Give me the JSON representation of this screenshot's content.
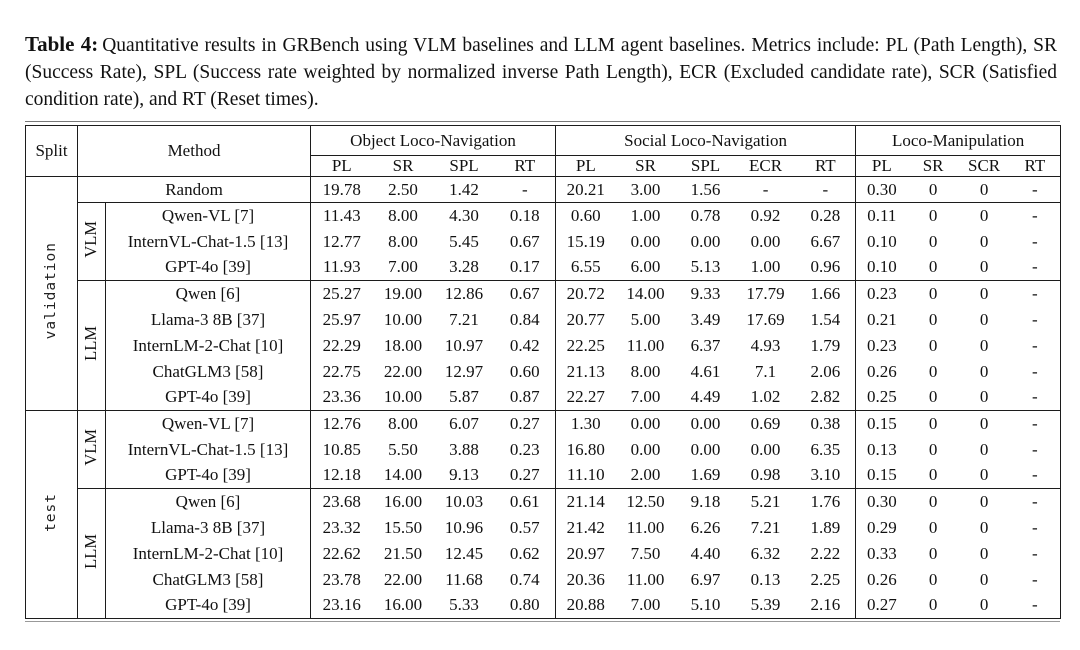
{
  "caption": {
    "label": "Table 4:",
    "text": "Quantitative results in GRBench using VLM baselines and LLM agent baselines. Metrics include: PL (Path Length), SR (Success Rate), SPL (Success rate weighted by normalized inverse Path Length), ECR (Excluded candidate rate), SCR (Satisfied condition rate), and RT (Reset times)."
  },
  "table": {
    "header": {
      "split": "Split",
      "method": "Method",
      "groups": [
        {
          "label": "Object Loco-Navigation",
          "cols": [
            "PL",
            "SR",
            "SPL",
            "RT"
          ]
        },
        {
          "label": "Social Loco-Navigation",
          "cols": [
            "PL",
            "SR",
            "SPL",
            "ECR",
            "RT"
          ]
        },
        {
          "label": "Loco-Manipulation",
          "cols": [
            "PL",
            "SR",
            "SCR",
            "RT"
          ]
        }
      ]
    },
    "sections": [
      {
        "split": "validation",
        "groups": [
          {
            "category": null,
            "rows": [
              {
                "method": "Random",
                "values": [
                  "19.78",
                  "2.50",
                  "1.42",
                  "-",
                  "20.21",
                  "3.00",
                  "1.56",
                  "-",
                  "-",
                  "0.30",
                  "0",
                  "0",
                  "-"
                ]
              }
            ]
          },
          {
            "category": "VLM",
            "rows": [
              {
                "method": "Qwen-VL [7]",
                "values": [
                  "11.43",
                  "8.00",
                  "4.30",
                  "0.18",
                  "0.60",
                  "1.00",
                  "0.78",
                  "0.92",
                  "0.28",
                  "0.11",
                  "0",
                  "0",
                  "-"
                ]
              },
              {
                "method": "InternVL-Chat-1.5 [13]",
                "values": [
                  "12.77",
                  "8.00",
                  "5.45",
                  "0.67",
                  "15.19",
                  "0.00",
                  "0.00",
                  "0.00",
                  "6.67",
                  "0.10",
                  "0",
                  "0",
                  "-"
                ]
              },
              {
                "method": "GPT-4o [39]",
                "values": [
                  "11.93",
                  "7.00",
                  "3.28",
                  "0.17",
                  "6.55",
                  "6.00",
                  "5.13",
                  "1.00",
                  "0.96",
                  "0.10",
                  "0",
                  "0",
                  "-"
                ]
              }
            ]
          },
          {
            "category": "LLM",
            "rows": [
              {
                "method": "Qwen [6]",
                "values": [
                  "25.27",
                  "19.00",
                  "12.86",
                  "0.67",
                  "20.72",
                  "14.00",
                  "9.33",
                  "17.79",
                  "1.66",
                  "0.23",
                  "0",
                  "0",
                  "-"
                ]
              },
              {
                "method": "Llama-3 8B [37]",
                "values": [
                  "25.97",
                  "10.00",
                  "7.21",
                  "0.84",
                  "20.77",
                  "5.00",
                  "3.49",
                  "17.69",
                  "1.54",
                  "0.21",
                  "0",
                  "0",
                  "-"
                ]
              },
              {
                "method": "InternLM-2-Chat [10]",
                "values": [
                  "22.29",
                  "18.00",
                  "10.97",
                  "0.42",
                  "22.25",
                  "11.00",
                  "6.37",
                  "4.93",
                  "1.79",
                  "0.23",
                  "0",
                  "0",
                  "-"
                ]
              },
              {
                "method": "ChatGLM3 [58]",
                "values": [
                  "22.75",
                  "22.00",
                  "12.97",
                  "0.60",
                  "21.13",
                  "8.00",
                  "4.61",
                  "7.1",
                  "2.06",
                  "0.26",
                  "0",
                  "0",
                  "-"
                ]
              },
              {
                "method": "GPT-4o [39]",
                "values": [
                  "23.36",
                  "10.00",
                  "5.87",
                  "0.87",
                  "22.27",
                  "7.00",
                  "4.49",
                  "1.02",
                  "2.82",
                  "0.25",
                  "0",
                  "0",
                  "-"
                ]
              }
            ]
          }
        ]
      },
      {
        "split": "test",
        "groups": [
          {
            "category": "VLM",
            "rows": [
              {
                "method": "Qwen-VL [7]",
                "values": [
                  "12.76",
                  "8.00",
                  "6.07",
                  "0.27",
                  "1.30",
                  "0.00",
                  "0.00",
                  "0.69",
                  "0.38",
                  "0.15",
                  "0",
                  "0",
                  "-"
                ]
              },
              {
                "method": "InternVL-Chat-1.5 [13]",
                "values": [
                  "10.85",
                  "5.50",
                  "3.88",
                  "0.23",
                  "16.80",
                  "0.00",
                  "0.00",
                  "0.00",
                  "6.35",
                  "0.13",
                  "0",
                  "0",
                  "-"
                ]
              },
              {
                "method": "GPT-4o [39]",
                "values": [
                  "12.18",
                  "14.00",
                  "9.13",
                  "0.27",
                  "11.10",
                  "2.00",
                  "1.69",
                  "0.98",
                  "3.10",
                  "0.15",
                  "0",
                  "0",
                  "-"
                ]
              }
            ]
          },
          {
            "category": "LLM",
            "rows": [
              {
                "method": "Qwen [6]",
                "values": [
                  "23.68",
                  "16.00",
                  "10.03",
                  "0.61",
                  "21.14",
                  "12.50",
                  "9.18",
                  "5.21",
                  "1.76",
                  "0.30",
                  "0",
                  "0",
                  "-"
                ]
              },
              {
                "method": "Llama-3 8B [37]",
                "values": [
                  "23.32",
                  "15.50",
                  "10.96",
                  "0.57",
                  "21.42",
                  "11.00",
                  "6.26",
                  "7.21",
                  "1.89",
                  "0.29",
                  "0",
                  "0",
                  "-"
                ]
              },
              {
                "method": "InternLM-2-Chat [10]",
                "values": [
                  "22.62",
                  "21.50",
                  "12.45",
                  "0.62",
                  "20.97",
                  "7.50",
                  "4.40",
                  "6.32",
                  "2.22",
                  "0.33",
                  "0",
                  "0",
                  "-"
                ]
              },
              {
                "method": "ChatGLM3 [58]",
                "values": [
                  "23.78",
                  "22.00",
                  "11.68",
                  "0.74",
                  "20.36",
                  "11.00",
                  "6.97",
                  "0.13",
                  "2.25",
                  "0.26",
                  "0",
                  "0",
                  "-"
                ]
              },
              {
                "method": "GPT-4o [39]",
                "values": [
                  "23.16",
                  "16.00",
                  "5.33",
                  "0.80",
                  "20.88",
                  "7.00",
                  "5.10",
                  "5.39",
                  "2.16",
                  "0.27",
                  "0",
                  "0",
                  "-"
                ]
              }
            ]
          }
        ]
      }
    ]
  }
}
